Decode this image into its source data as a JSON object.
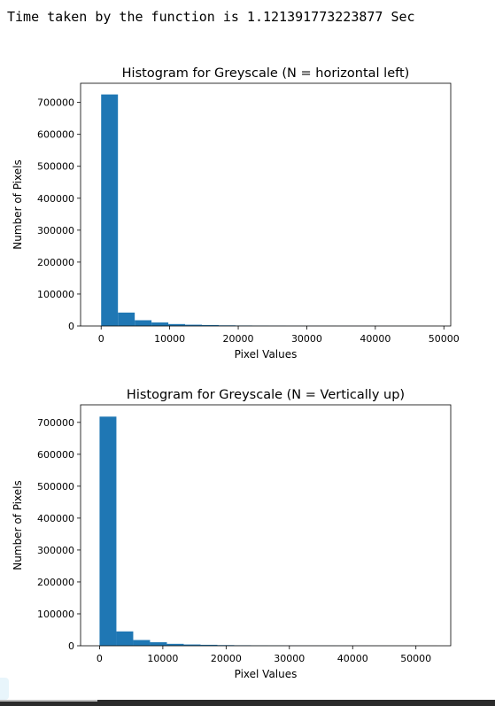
{
  "output": {
    "timing_text": "Time taken by the function is 1.121391773223877 Sec"
  },
  "colors": {
    "bar": "#1f77b4",
    "axis": "#000000",
    "background": "#ffffff"
  },
  "chart_data": [
    {
      "type": "bar",
      "title": "Histogram for Greyscale (N = horizontal left)",
      "xlabel": "Pixel Values",
      "ylabel": "Number of Pixels",
      "xlim": [
        -3000,
        51000
      ],
      "ylim": [
        0,
        760000
      ],
      "xticks": [
        0,
        10000,
        20000,
        30000,
        40000,
        50000
      ],
      "xtick_labels": [
        "0",
        "10000",
        "20000",
        "30000",
        "40000",
        "50000"
      ],
      "yticks": [
        0,
        100000,
        200000,
        300000,
        400000,
        500000,
        600000,
        700000
      ],
      "ytick_labels": [
        "0",
        "100000",
        "200000",
        "300000",
        "400000",
        "500000",
        "600000",
        "700000"
      ],
      "bin_start": 0,
      "bin_width": 2450,
      "values": [
        725000,
        42000,
        18000,
        11000,
        6000,
        4000,
        3000,
        2000,
        1500,
        1000,
        800,
        600,
        500,
        400,
        300,
        250,
        200,
        150,
        120,
        100
      ],
      "grid": false,
      "legend": "none"
    },
    {
      "type": "bar",
      "title": "Histogram for Greyscale (N = Vertically up)",
      "xlabel": "Pixel Values",
      "ylabel": "Number of Pixels",
      "xlim": [
        -3000,
        55500
      ],
      "ylim": [
        0,
        755000
      ],
      "xticks": [
        0,
        10000,
        20000,
        30000,
        40000,
        50000
      ],
      "xtick_labels": [
        "0",
        "10000",
        "20000",
        "30000",
        "40000",
        "50000"
      ],
      "yticks": [
        0,
        100000,
        200000,
        300000,
        400000,
        500000,
        600000,
        700000
      ],
      "ytick_labels": [
        "0",
        "100000",
        "200000",
        "300000",
        "400000",
        "500000",
        "600000",
        "700000"
      ],
      "bin_start": 0,
      "bin_width": 2660,
      "values": [
        718000,
        45000,
        18000,
        11000,
        6000,
        4000,
        3000,
        2000,
        1500,
        1000,
        800,
        600,
        500,
        400,
        300,
        250,
        200,
        150,
        120,
        100
      ],
      "grid": false,
      "legend": "none"
    }
  ]
}
